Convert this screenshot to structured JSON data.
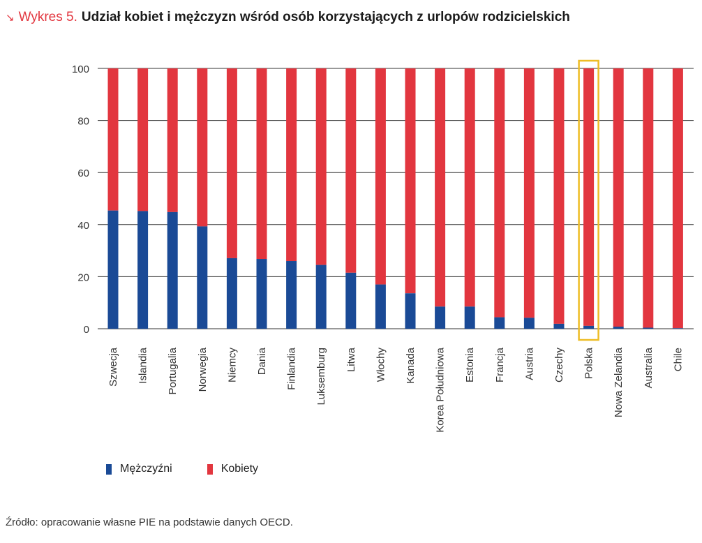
{
  "header": {
    "arrow_icon": "↘",
    "chart_number": "Wykres 5.",
    "title": "Udział kobiet i mężczyzn wśród osób korzystających z urlopów rodzicielskich"
  },
  "colors": {
    "men": "#1a4a96",
    "women": "#e2363f",
    "highlight": "#eebd25",
    "grid": "#333333"
  },
  "chart_data": {
    "type": "bar",
    "stacked": true,
    "categories": [
      "Szwecja",
      "Islandia",
      "Portugalia",
      "Norwegia",
      "Niemcy",
      "Dania",
      "Finlandia",
      "Luksemburg",
      "Litwa",
      "Włochy",
      "Kanada",
      "Korea Południowa",
      "Estonia",
      "Francja",
      "Austria",
      "Czechy",
      "Polska",
      "Nowa Zelandia",
      "Australia",
      "Chile"
    ],
    "series": [
      {
        "name": "Mężczyźni",
        "values": [
          45.4,
          45.2,
          44.8,
          39.3,
          27.1,
          26.8,
          26.0,
          24.5,
          21.5,
          17.0,
          13.6,
          8.5,
          8.5,
          4.4,
          4.2,
          1.9,
          1.1,
          0.8,
          0.4,
          0.2
        ]
      },
      {
        "name": "Kobiety",
        "values": [
          54.6,
          54.8,
          55.2,
          60.7,
          72.9,
          73.2,
          74.0,
          75.5,
          78.5,
          83.0,
          86.4,
          91.5,
          91.5,
          95.6,
          95.8,
          98.1,
          98.9,
          99.2,
          99.6,
          99.8
        ]
      }
    ],
    "ylim": [
      0,
      100
    ],
    "yticks": [
      "0",
      "20",
      "40",
      "60",
      "80",
      "100"
    ],
    "ytick_values": [
      0,
      20,
      40,
      60,
      80,
      100
    ],
    "highlight_category": "Polska",
    "grid": true,
    "legend_position": "bottom-left"
  },
  "source": "Źródło: opracowanie własne PIE na podstawie danych OECD."
}
